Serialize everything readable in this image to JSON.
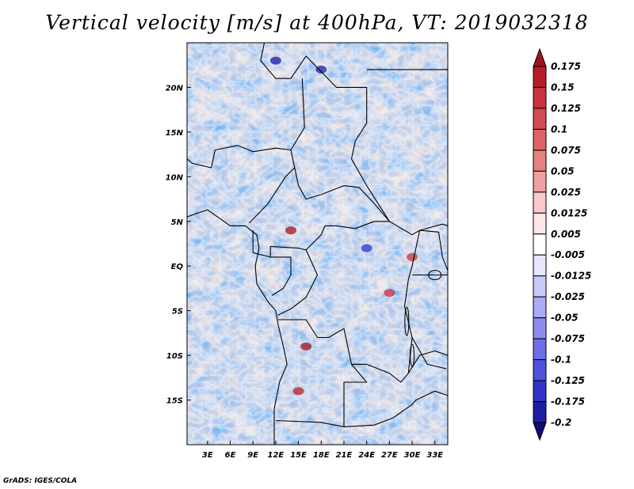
{
  "chart_data": {
    "type": "heatmap",
    "title": "Vertical velocity [m/s] at 400hPa, VT: 2019032318",
    "variable": "Vertical velocity",
    "units": "m/s",
    "level": "400hPa",
    "valid_time": "2019032318",
    "xlabel": "",
    "ylabel": "",
    "x_ticks": [
      "3E",
      "6E",
      "9E",
      "12E",
      "15E",
      "18E",
      "21E",
      "24E",
      "27E",
      "30E",
      "33E"
    ],
    "x_tick_values": [
      3,
      6,
      9,
      12,
      15,
      18,
      21,
      24,
      27,
      30,
      33
    ],
    "y_ticks": [
      "20N",
      "15N",
      "10N",
      "5N",
      "EQ",
      "5S",
      "10S",
      "15S"
    ],
    "y_tick_values": [
      20,
      15,
      10,
      5,
      0,
      -5,
      -10,
      -15
    ],
    "lon_range": [
      0.3,
      34.7
    ],
    "lat_range": [
      -20,
      25
    ],
    "colorbar": {
      "labels": [
        "0.175",
        "0.15",
        "0.125",
        "0.1",
        "0.075",
        "0.05",
        "0.025",
        "0.0125",
        "0.005",
        "-0.005",
        "-0.0125",
        "-0.025",
        "-0.05",
        "-0.075",
        "-0.1",
        "-0.125",
        "-0.175",
        "-0.2"
      ],
      "colors": [
        "#a0141e",
        "#b41e28",
        "#c8323c",
        "#d24b50",
        "#de6464",
        "#e68282",
        "#f0a0a0",
        "#fac8c8",
        "#fde6e6",
        "#ffffff",
        "#e6e6ff",
        "#c8c8fa",
        "#aaaaf5",
        "#8c8cf0",
        "#6e6ee6",
        "#5050dc",
        "#3232c8",
        "#1e1ea0",
        "#140a78"
      ]
    }
  },
  "footer": {
    "credit": "GrADS: IGES/COLA"
  }
}
